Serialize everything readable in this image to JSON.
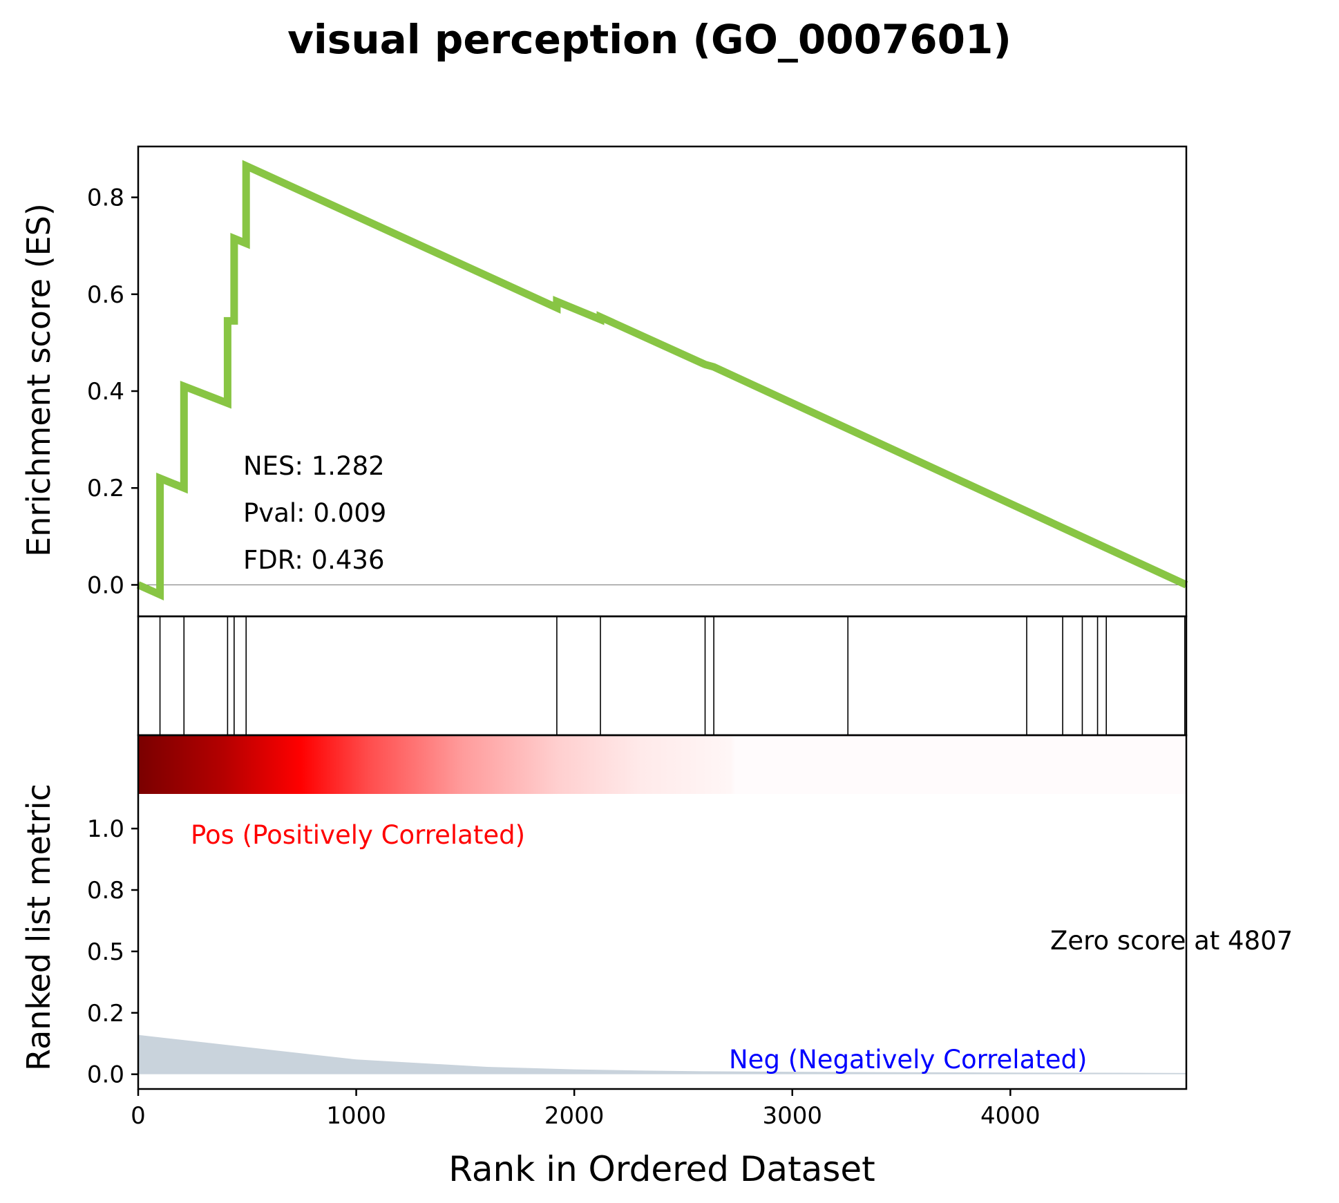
{
  "title": "visual perception (GO_0007601)",
  "colors": {
    "es_line": "#88c544",
    "ranked_fill": "#c9d3dc",
    "pos_text": "#ff0000",
    "neg_text": "#0000ff",
    "zero_line": "#808080"
  },
  "chart_data": [
    {
      "type": "line",
      "panel": "enrichment-score",
      "ylabel": "Enrichment score (ES)",
      "xlim": [
        0,
        4807
      ],
      "ylim": [
        -0.065,
        0.905
      ],
      "yticks": [
        0.0,
        0.2,
        0.4,
        0.6,
        0.8
      ],
      "ytick_labels": [
        "0.0",
        "0.2",
        "0.4",
        "0.6",
        "0.8"
      ],
      "zero_line": true,
      "series": [
        {
          "x": [
            0,
            100,
            100,
            210,
            210,
            410,
            410,
            440,
            440,
            495,
            495,
            1920,
            1920,
            2120,
            2120,
            2600,
            2600,
            2640,
            4807
          ],
          "y": [
            0.0,
            -0.02,
            0.22,
            0.2,
            0.41,
            0.375,
            0.545,
            0.545,
            0.715,
            0.705,
            0.865,
            0.572,
            0.585,
            0.548,
            0.553,
            0.455,
            0.455,
            0.45,
            0.0
          ]
        }
      ],
      "annotations": {
        "nes": "NES: 1.282",
        "pval": "Pval: 0.009",
        "fdr": "FDR: 0.436"
      }
    },
    {
      "type": "hits",
      "panel": "gene-hits",
      "xlim": [
        0,
        4807
      ],
      "hits": [
        100,
        210,
        410,
        440,
        495,
        1920,
        2120,
        2600,
        2640,
        3255,
        4075,
        4240,
        4330,
        4400,
        4440,
        4800
      ]
    },
    {
      "type": "area",
      "panel": "ranked-list",
      "ylabel": "Ranked list metric",
      "xlabel": "Rank in Ordered Dataset",
      "xlim": [
        0,
        4807
      ],
      "ylim": [
        -0.06,
        1.38
      ],
      "xticks": [
        0,
        1000,
        2000,
        3000,
        4000
      ],
      "xtick_labels": [
        "0",
        "1000",
        "2000",
        "3000",
        "4000"
      ],
      "yticks": [
        0.0,
        0.25,
        0.5,
        0.75,
        1.0
      ],
      "ytick_labels": [
        "0.0",
        "0.2",
        "0.5",
        "0.8",
        "1.0"
      ],
      "series": [
        {
          "x": [
            0,
            200,
            400,
            600,
            800,
            1000,
            1200,
            1400,
            1600,
            1800,
            2000,
            2300,
            2600,
            3000,
            3500,
            4000,
            4500,
            4807
          ],
          "y": [
            0.16,
            0.14,
            0.12,
            0.1,
            0.08,
            0.06,
            0.05,
            0.04,
            0.03,
            0.025,
            0.02,
            0.015,
            0.012,
            0.01,
            0.008,
            0.007,
            0.006,
            0.005
          ]
        }
      ],
      "labels": {
        "pos": "Pos (Positively Correlated)",
        "neg": "Neg (Negatively Correlated)",
        "zero": "Zero score at 4807"
      }
    }
  ]
}
